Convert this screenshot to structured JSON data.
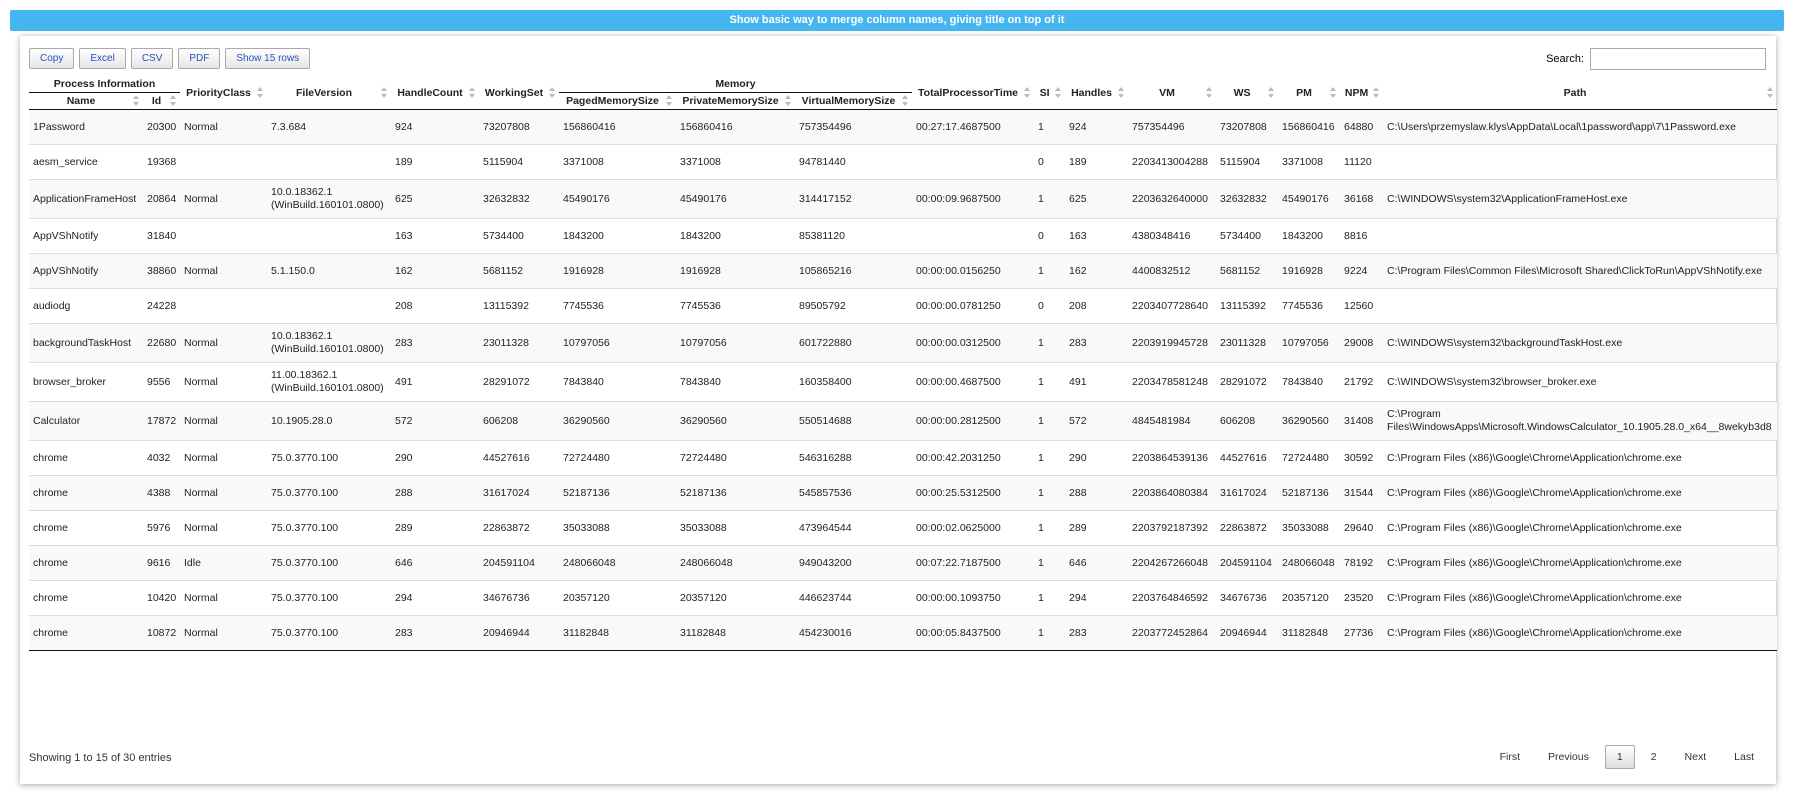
{
  "header": {
    "title": "Show basic way to merge column names, giving title on top of it"
  },
  "buttons": [
    "Copy",
    "Excel",
    "CSV",
    "PDF",
    "Show 15 rows"
  ],
  "search_label": "Search:",
  "table": {
    "group_headers": [
      "Process Information",
      "Memory"
    ],
    "columns": [
      "Name",
      "Id",
      "PriorityClass",
      "FileVersion",
      "HandleCount",
      "WorkingSet",
      "PagedMemorySize",
      "PrivateMemorySize",
      "VirtualMemorySize",
      "TotalProcessorTime",
      "SI",
      "Handles",
      "VM",
      "WS",
      "PM",
      "NPM",
      "Path"
    ],
    "rows": [
      [
        "1Password",
        20300,
        "Normal",
        "7.3.684",
        924,
        73207808,
        156860416,
        156860416,
        757354496,
        "00:27:17.4687500",
        1,
        924,
        757354496,
        73207808,
        156860416,
        64880,
        "C:\\Users\\przemyslaw.klys\\AppData\\Local\\1password\\app\\7\\1Password.exe"
      ],
      [
        "aesm_service",
        19368,
        null,
        null,
        189,
        5115904,
        3371008,
        3371008,
        94781440,
        null,
        0,
        189,
        2203413004288,
        5115904,
        3371008,
        11120,
        null
      ],
      [
        "ApplicationFrameHost",
        20864,
        "Normal",
        "10.0.18362.1 (WinBuild.160101.0800)",
        625,
        32632832,
        45490176,
        45490176,
        314417152,
        "00:00:09.9687500",
        1,
        625,
        2203632640000,
        32632832,
        45490176,
        36168,
        "C:\\WINDOWS\\system32\\ApplicationFrameHost.exe"
      ],
      [
        "AppVShNotify",
        31840,
        null,
        null,
        163,
        5734400,
        1843200,
        1843200,
        85381120,
        null,
        0,
        163,
        4380348416,
        5734400,
        1843200,
        8816,
        null
      ],
      [
        "AppVShNotify",
        38860,
        "Normal",
        "5.1.150.0",
        162,
        5681152,
        1916928,
        1916928,
        105865216,
        "00:00:00.0156250",
        1,
        162,
        4400832512,
        5681152,
        1916928,
        9224,
        "C:\\Program Files\\Common Files\\Microsoft Shared\\ClickToRun\\AppVShNotify.exe"
      ],
      [
        "audiodg",
        24228,
        null,
        null,
        208,
        13115392,
        7745536,
        7745536,
        89505792,
        "00:00:00.0781250",
        0,
        208,
        2203407728640,
        13115392,
        7745536,
        12560,
        null
      ],
      [
        "backgroundTaskHost",
        22680,
        "Normal",
        "10.0.18362.1 (WinBuild.160101.0800)",
        283,
        23011328,
        10797056,
        10797056,
        601722880,
        "00:00:00.0312500",
        1,
        283,
        2203919945728,
        23011328,
        10797056,
        29008,
        "C:\\WINDOWS\\system32\\backgroundTaskHost.exe"
      ],
      [
        "browser_broker",
        9556,
        "Normal",
        "11.00.18362.1 (WinBuild.160101.0800)",
        491,
        28291072,
        7843840,
        7843840,
        160358400,
        "00:00:00.4687500",
        1,
        491,
        2203478581248,
        28291072,
        7843840,
        21792,
        "C:\\WINDOWS\\system32\\browser_broker.exe"
      ],
      [
        "Calculator",
        17872,
        "Normal",
        "10.1905.28.0",
        572,
        606208,
        36290560,
        36290560,
        550514688,
        "00:00:00.2812500",
        1,
        572,
        4845481984,
        606208,
        36290560,
        31408,
        "C:\\Program Files\\WindowsApps\\Microsoft.WindowsCalculator_10.1905.28.0_x64__8wekyb3d8"
      ],
      [
        "chrome",
        4032,
        "Normal",
        "75.0.3770.100",
        290,
        44527616,
        72724480,
        72724480,
        546316288,
        "00:00:42.2031250",
        1,
        290,
        2203864539136,
        44527616,
        72724480,
        30592,
        "C:\\Program Files (x86)\\Google\\Chrome\\Application\\chrome.exe"
      ],
      [
        "chrome",
        4388,
        "Normal",
        "75.0.3770.100",
        288,
        31617024,
        52187136,
        52187136,
        545857536,
        "00:00:25.5312500",
        1,
        288,
        2203864080384,
        31617024,
        52187136,
        31544,
        "C:\\Program Files (x86)\\Google\\Chrome\\Application\\chrome.exe"
      ],
      [
        "chrome",
        5976,
        "Normal",
        "75.0.3770.100",
        289,
        22863872,
        35033088,
        35033088,
        473964544,
        "00:00:02.0625000",
        1,
        289,
        2203792187392,
        22863872,
        35033088,
        29640,
        "C:\\Program Files (x86)\\Google\\Chrome\\Application\\chrome.exe"
      ],
      [
        "chrome",
        9616,
        "Idle",
        "75.0.3770.100",
        646,
        204591104,
        248066048,
        248066048,
        949043200,
        "00:07:22.7187500",
        1,
        646,
        2204267266048,
        204591104,
        248066048,
        78192,
        "C:\\Program Files (x86)\\Google\\Chrome\\Application\\chrome.exe"
      ],
      [
        "chrome",
        10420,
        "Normal",
        "75.0.3770.100",
        294,
        34676736,
        20357120,
        20357120,
        446623744,
        "00:00:00.1093750",
        1,
        294,
        2203764846592,
        34676736,
        20357120,
        23520,
        "C:\\Program Files (x86)\\Google\\Chrome\\Application\\chrome.exe"
      ],
      [
        "chrome",
        10872,
        "Normal",
        "75.0.3770.100",
        283,
        20946944,
        31182848,
        31182848,
        454230016,
        "00:00:05.8437500",
        1,
        283,
        2203772452864,
        20946944,
        31182848,
        27736,
        "C:\\Program Files (x86)\\Google\\Chrome\\Application\\chrome.exe"
      ]
    ]
  },
  "footer": {
    "info": "Showing 1 to 15 of 30 entries",
    "pagination": [
      "First",
      "Previous",
      "1",
      "2",
      "Next",
      "Last"
    ]
  }
}
